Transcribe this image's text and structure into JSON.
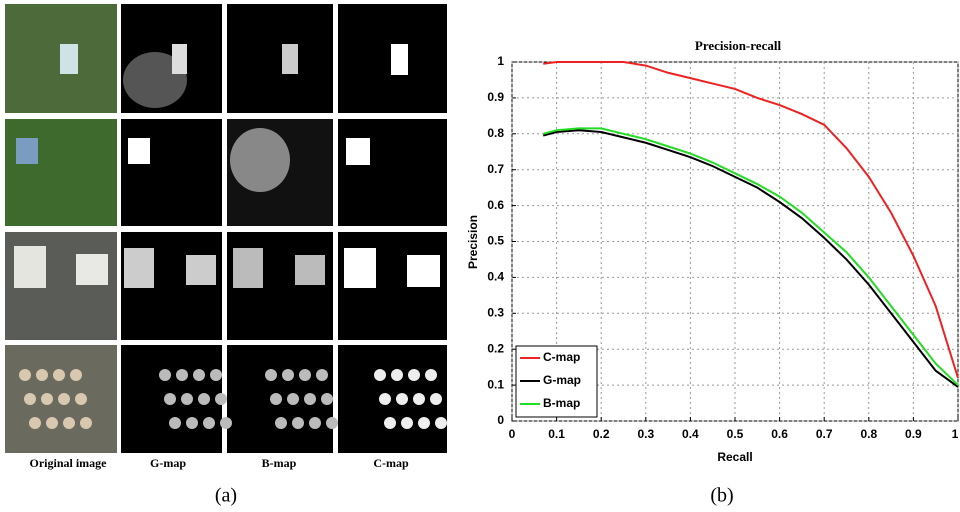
{
  "panel_a": {
    "column_labels": [
      "Original image",
      "G-map",
      "B-map",
      "C-map"
    ],
    "caption": "(a)"
  },
  "panel_b": {
    "caption": "(b)"
  },
  "chart_data": {
    "type": "line",
    "title": "Precision-recall",
    "x_label": "Recall",
    "y_label": "Precision",
    "x": [
      0.07,
      0.1,
      0.15,
      0.2,
      0.25,
      0.3,
      0.35,
      0.4,
      0.45,
      0.5,
      0.55,
      0.6,
      0.65,
      0.7,
      0.75,
      0.8,
      0.85,
      0.9,
      0.95,
      1.0
    ],
    "series": [
      {
        "name": "C-map",
        "color": "#ee2222",
        "values": [
          0.995,
          1,
          1,
          1,
          1,
          0.99,
          0.97,
          0.955,
          0.94,
          0.925,
          0.9,
          0.88,
          0.855,
          0.825,
          0.76,
          0.68,
          0.58,
          0.46,
          0.32,
          0.12
        ]
      },
      {
        "name": "G-map",
        "color": "#000000",
        "values": [
          0.795,
          0.805,
          0.81,
          0.805,
          0.79,
          0.775,
          0.755,
          0.735,
          0.71,
          0.68,
          0.65,
          0.61,
          0.565,
          0.51,
          0.45,
          0.38,
          0.3,
          0.22,
          0.14,
          0.095
        ]
      },
      {
        "name": "B-map",
        "color": "#22dd22",
        "values": [
          0.8,
          0.81,
          0.815,
          0.815,
          0.8,
          0.785,
          0.765,
          0.745,
          0.72,
          0.69,
          0.66,
          0.625,
          0.58,
          0.525,
          0.47,
          0.4,
          0.32,
          0.24,
          0.16,
          0.1
        ]
      }
    ],
    "xlim": [
      0,
      1
    ],
    "ylim": [
      0,
      1
    ],
    "xticks": [
      0,
      0.1,
      0.2,
      0.3,
      0.4,
      0.5,
      0.6,
      0.7,
      0.8,
      0.9,
      1
    ],
    "yticks": [
      0,
      0.1,
      0.2,
      0.3,
      0.4,
      0.5,
      0.6,
      0.7,
      0.8,
      0.9,
      1
    ],
    "grid": true,
    "legend": "lower left"
  }
}
